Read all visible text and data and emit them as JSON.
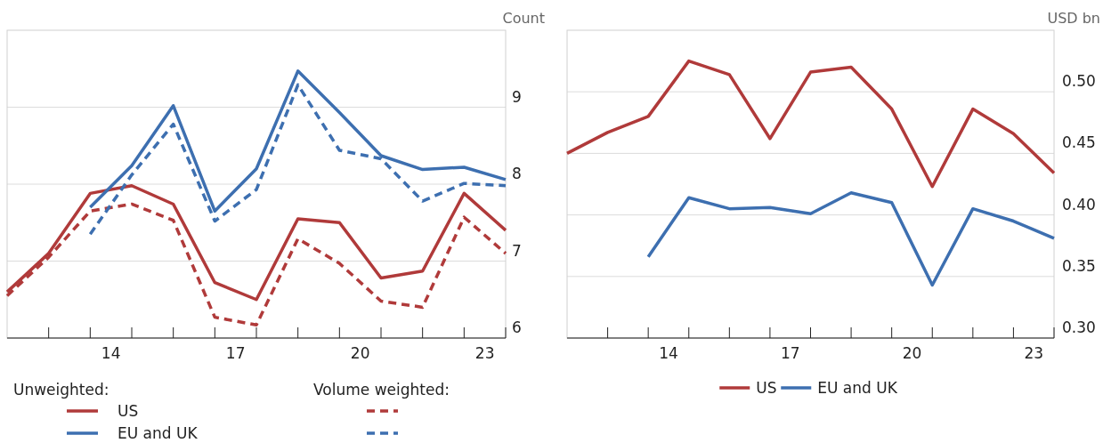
{
  "chart_data": [
    {
      "type": "line",
      "ylabel": "Count",
      "legend_title": "Unweighted:",
      "annotations": [
        "Volume weighted:"
      ],
      "legend": "bottom",
      "grid": "y",
      "x": [
        11.5,
        12.5,
        13.5,
        14.5,
        15.5,
        16.5,
        17.5,
        18.5,
        19.5,
        20.5,
        21.5,
        22.5,
        23.5
      ],
      "xlim": [
        11.5,
        23.5
      ],
      "xticks": [
        {
          "value": 12.5,
          "label": null
        },
        {
          "value": 13.5,
          "label": null
        },
        14,
        {
          "value": 14.5,
          "label": null
        },
        {
          "value": 15.5,
          "label": null
        },
        {
          "value": 16.5,
          "label": null
        },
        17,
        {
          "value": 17.5,
          "label": null
        },
        {
          "value": 18.5,
          "label": null
        },
        {
          "value": 19.5,
          "label": null
        },
        20,
        {
          "value": 20.5,
          "label": null
        },
        {
          "value": 21.5,
          "label": null
        },
        {
          "value": 22.5,
          "label": null
        },
        23,
        {
          "value": 23.5,
          "label": null
        }
      ],
      "ylim": [
        6,
        10
      ],
      "yticks": [
        6,
        7,
        8,
        9
      ],
      "series": [
        {
          "name": "US",
          "color": "#b03a3a",
          "line_style": "solid",
          "values": [
            6.6,
            7.1,
            7.88,
            7.98,
            7.74,
            6.72,
            6.5,
            7.55,
            7.5,
            6.78,
            6.87,
            7.88,
            7.4
          ]
        },
        {
          "name": "EU and UK",
          "color": "#3d6fb0",
          "line_style": "solid",
          "values": [
            null,
            null,
            7.7,
            8.24,
            9.02,
            7.65,
            8.2,
            9.47,
            8.93,
            8.37,
            8.19,
            8.22,
            8.06
          ]
        },
        {
          "color": "#b03a3a",
          "line_style": "dashed",
          "values": [
            6.55,
            7.05,
            7.65,
            7.74,
            7.53,
            6.27,
            6.17,
            7.29,
            6.97,
            6.48,
            6.4,
            7.57,
            7.1
          ]
        },
        {
          "color": "#3d6fb0",
          "line_style": "dashed",
          "values": [
            null,
            null,
            7.35,
            8.12,
            8.78,
            7.52,
            7.93,
            9.29,
            8.44,
            8.33,
            7.78,
            8.01,
            7.98
          ]
        }
      ]
    },
    {
      "type": "line",
      "ylabel": "USD bn",
      "legend": "bottom",
      "grid": "y",
      "x": [
        11.5,
        12.5,
        13.5,
        14.5,
        15.5,
        16.5,
        17.5,
        18.5,
        19.5,
        20.5,
        21.5,
        22.5,
        23.5
      ],
      "xlim": [
        11.5,
        23.5
      ],
      "xticks": [
        {
          "value": 12.5,
          "label": null
        },
        {
          "value": 13.5,
          "label": null
        },
        14,
        {
          "value": 14.5,
          "label": null
        },
        {
          "value": 15.5,
          "label": null
        },
        {
          "value": 16.5,
          "label": null
        },
        17,
        {
          "value": 17.5,
          "label": null
        },
        {
          "value": 18.5,
          "label": null
        },
        {
          "value": 19.5,
          "label": null
        },
        20,
        {
          "value": 20.5,
          "label": null
        },
        {
          "value": 21.5,
          "label": null
        },
        {
          "value": 22.5,
          "label": null
        },
        23,
        {
          "value": 23.5,
          "label": null
        }
      ],
      "ylim": [
        0.3,
        0.55
      ],
      "yticks": [
        {
          "value": 0.3,
          "label": "0.30"
        },
        {
          "value": 0.35,
          "label": "0.35"
        },
        {
          "value": 0.4,
          "label": "0.40"
        },
        {
          "value": 0.45,
          "label": "0.45"
        },
        {
          "value": 0.5,
          "label": "0.50"
        }
      ],
      "series": [
        {
          "name": "US",
          "color": "#b03a3a",
          "values": [
            0.45,
            0.467,
            0.48,
            0.525,
            0.514,
            0.462,
            0.516,
            0.52,
            0.486,
            0.423,
            0.486,
            0.466,
            0.434
          ]
        },
        {
          "name": "EU and UK",
          "color": "#3d6fb0",
          "values": [
            null,
            null,
            0.366,
            0.414,
            0.405,
            0.406,
            0.401,
            0.418,
            0.41,
            0.343,
            0.405,
            0.395,
            0.381
          ]
        }
      ]
    }
  ]
}
